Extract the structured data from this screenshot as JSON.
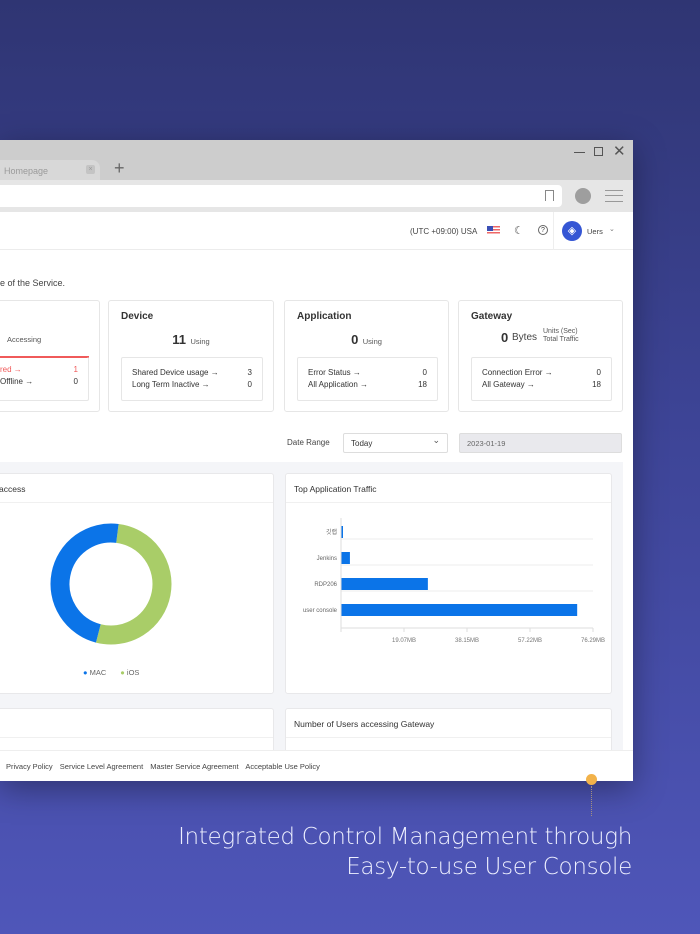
{
  "browser": {
    "tab_title": "Homepage",
    "new_tab": "+"
  },
  "header": {
    "timezone": "(UTC +09:00) USA",
    "user": "Uers"
  },
  "page": {
    "description": "e of the Service."
  },
  "cards": {
    "user": {
      "stat_label": "Accessing",
      "rows": [
        {
          "label": "red →",
          "value": "1"
        },
        {
          "label": "Offline →",
          "value": "0"
        }
      ]
    },
    "device": {
      "title": "Device",
      "value": "11",
      "unit": "Using",
      "rows": [
        {
          "label": "Shared Device usage →",
          "value": "3"
        },
        {
          "label": "Long Term Inactive →",
          "value": "0"
        }
      ]
    },
    "application": {
      "title": "Application",
      "value": "0",
      "unit": "Using",
      "rows": [
        {
          "label": "Error Status →",
          "value": "0"
        },
        {
          "label": "All Application →",
          "value": "18"
        }
      ]
    },
    "gateway": {
      "title": "Gateway",
      "value": "0",
      "unit": "Bytes",
      "note1": "Units (Sec)",
      "note2": "Total Traffic",
      "rows": [
        {
          "label": "Connection Error →",
          "value": "0"
        },
        {
          "label": "All Gateway →",
          "value": "18"
        }
      ]
    }
  },
  "filters": {
    "date_range_label": "Date Range",
    "date_range_value": "Today",
    "date": "2023-01-19"
  },
  "panels": {
    "bottom_right_title": "Number of Users accessing Gateway"
  },
  "footer": {
    "links": [
      "Privacy Policy",
      "Service Level Agreement",
      "Master Service Agreement",
      "Acceptable Use Policy"
    ]
  },
  "caption": {
    "line1": "Integrated Control Management through",
    "line2": "Easy-to-use User Console"
  },
  "colors": {
    "blue": "#0b74e8",
    "green": "#a9cd68",
    "danger": "#f05a5a",
    "accent": "#f2b24a"
  },
  "chart_data": [
    {
      "type": "pie",
      "title": "access",
      "donut": true,
      "categories": [
        "MAC",
        "iOS"
      ],
      "values": [
        48,
        52
      ],
      "colors": [
        "#0b74e8",
        "#a9cd68"
      ],
      "legend": "bottom"
    },
    {
      "type": "bar",
      "orientation": "horizontal",
      "title": "Top Application Traffic",
      "categories": [
        "깃랩",
        "Jenkins",
        "RDP206",
        "user console"
      ],
      "values": [
        0.6,
        2.7,
        26.3,
        71.5
      ],
      "unit": "MB",
      "xticks": [
        "19.07MB",
        "38.15MB",
        "57.22MB",
        "76.29MB"
      ],
      "xlim": [
        0,
        76.29
      ],
      "grid": true
    }
  ]
}
